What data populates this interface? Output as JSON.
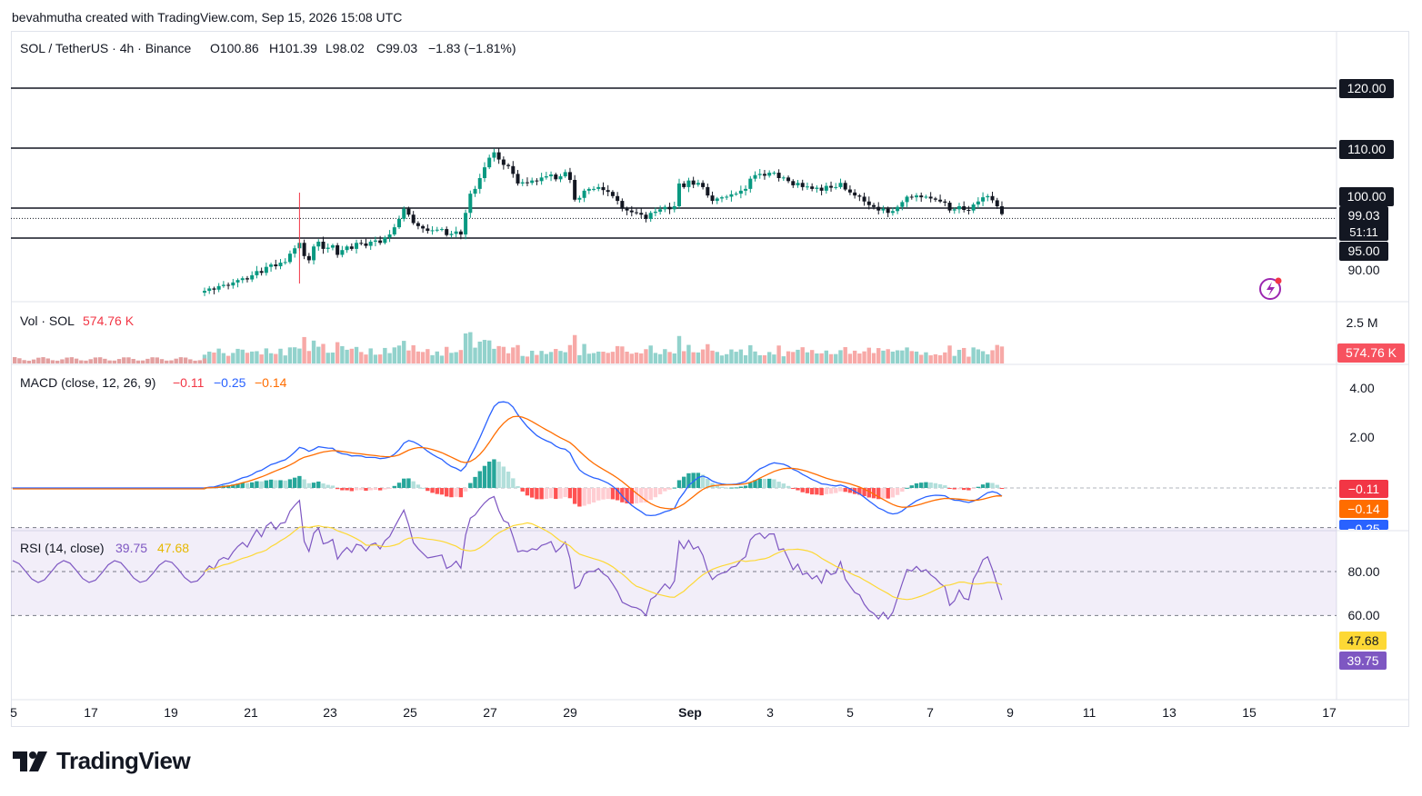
{
  "header": {
    "attribution": "bevahmutha created with TradingView.com, Sep 15, 2026 15:08 UTC"
  },
  "legend": {
    "symbol": "SOL / TetherUS · 4h · Binance",
    "open": "O100.86",
    "high": "H101.39",
    "low": "L98.02",
    "close": "C99.03",
    "change": "−1.83 (−1.81%)"
  },
  "price_axis": {
    "ticks": [
      "120.00",
      "110.00",
      "100.00",
      "95.00",
      "90.00"
    ],
    "current_price": "99.03",
    "countdown": "51:11"
  },
  "volume": {
    "title": "Vol · SOL",
    "value": "574.76 K",
    "axis_tick": "2.5 M",
    "tag": "574.76 K"
  },
  "macd": {
    "title": "MACD (close, 12, 26, 9)",
    "hist": "−0.11",
    "macd": "−0.25",
    "signal": "−0.14",
    "ticks": [
      "4.00",
      "2.00"
    ],
    "tags": [
      "−0.11",
      "−0.14",
      "−0.25"
    ]
  },
  "rsi": {
    "title": "RSI (14, close)",
    "value": "39.75",
    "ma": "47.68",
    "ticks": [
      "80.00",
      "60.00"
    ],
    "tags": [
      "47.68",
      "39.75"
    ]
  },
  "time_axis": [
    "5",
    "17",
    "19",
    "21",
    "23",
    "25",
    "27",
    "29",
    "Sep",
    "3",
    "5",
    "7",
    "9",
    "11",
    "13",
    "15",
    "17"
  ],
  "brand": {
    "name": "TradingView"
  },
  "colors": {
    "up": "#089981",
    "down": "#f23645",
    "macd_line": "#2962ff",
    "signal_line": "#ff6d00",
    "rsi_line": "#7e57c2",
    "rsi_ma": "#fdd835"
  },
  "chart_data": [
    {
      "type": "candlestick",
      "title": "SOL / TetherUS · 4h · Binance",
      "x_label_ticks": [
        "5",
        "17",
        "19",
        "21",
        "23",
        "25",
        "27",
        "29",
        "Sep",
        "3",
        "5",
        "7",
        "9",
        "11",
        "13",
        "15",
        "17"
      ],
      "ylim": [
        85,
        127
      ],
      "horizontal_levels": [
        120,
        110,
        100,
        95
      ],
      "series_close": [
        86.2,
        86.6,
        86.4,
        87.0,
        87.2,
        87.1,
        87.6,
        88.0,
        88.3,
        88.1,
        88.8,
        89.5,
        89.2,
        90.2,
        90.6,
        90.3,
        90.9,
        91.0,
        92.4,
        93.3,
        94.2,
        92.0,
        91.3,
        93.6,
        94.4,
        93.2,
        93.4,
        93.8,
        92.2,
        93.0,
        93.6,
        93.2,
        94.2,
        94.1,
        93.7,
        94.4,
        94.6,
        94.2,
        95.1,
        95.6,
        96.8,
        98.2,
        99.9,
        98.9,
        97.5,
        97.0,
        96.6,
        96.2,
        96.3,
        96.4,
        96.5,
        95.5,
        95.7,
        96.1,
        95.6,
        99.2,
        102.4,
        103.2,
        105.0,
        106.8,
        108.4,
        109.3,
        108.1,
        107.2,
        107.0,
        105.7,
        104.1,
        104.3,
        104.2,
        104.6,
        104.5,
        105.1,
        105.3,
        105.6,
        104.8,
        105.3,
        106.0,
        104.7,
        101.4,
        101.7,
        102.9,
        103.2,
        103.2,
        103.5,
        103.0,
        102.7,
        102.0,
        101.2,
        99.9,
        99.6,
        99.3,
        99.2,
        98.9,
        98.2,
        99.2,
        99.4,
        99.8,
        100.2,
        99.8,
        100.3,
        104.1,
        103.5,
        104.6,
        103.9,
        104.2,
        103.5,
        102.1,
        101.2,
        101.6,
        101.8,
        101.9,
        102.3,
        102.4,
        102.9,
        103.2,
        104.9,
        105.5,
        105.7,
        105.4,
        105.9,
        105.9,
        105.0,
        105.1,
        104.5,
        103.8,
        104.2,
        103.5,
        103.6,
        103.2,
        103.4,
        102.9,
        103.7,
        103.4,
        103.5,
        104.2,
        103.1,
        102.6,
        102.1,
        101.9,
        101.1,
        100.5,
        100.2,
        99.6,
        99.9,
        99.2,
        99.5,
        100.2,
        101.0,
        101.9,
        101.8,
        102.1,
        101.8,
        101.9,
        101.6,
        101.4,
        101.1,
        100.9,
        99.6,
        99.8,
        100.3,
        99.7,
        99.6,
        100.6,
        101.1,
        101.8,
        102.0,
        101.3,
        100.3,
        99.0
      ],
      "series": [
        {
          "name": "Vol · SOL",
          "last": 574760
        },
        {
          "name": "MACD",
          "macd": -0.25,
          "signal": -0.14,
          "histogram": -0.11
        },
        {
          "name": "RSI (14, close)",
          "rsi": 39.75,
          "rsi_ma": 47.68
        }
      ]
    }
  ]
}
